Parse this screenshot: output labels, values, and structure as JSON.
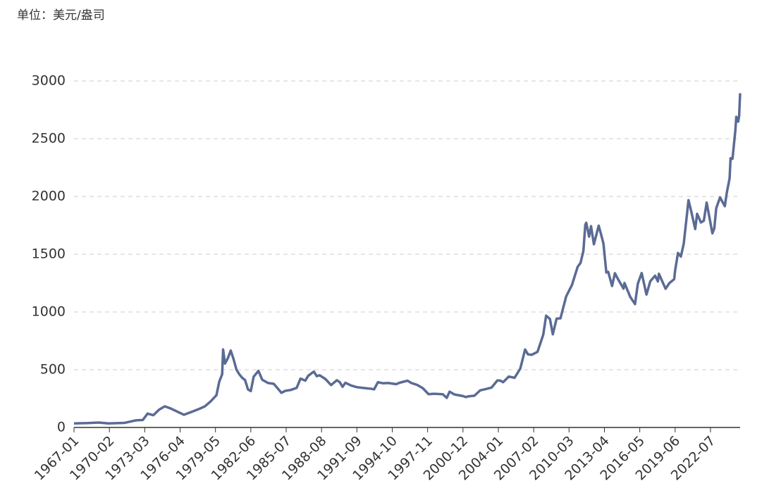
{
  "chart_data": {
    "type": "line",
    "unit_label": "单位：美元/盎司",
    "color": "#5a6b94",
    "grid": true,
    "xlim": [
      "1967-01",
      "2025-02"
    ],
    "ylim": [
      0,
      3000
    ],
    "yticks": [
      0,
      500,
      1000,
      1500,
      2000,
      2500,
      3000
    ],
    "xticks": [
      "1967-01",
      "1970-02",
      "1973-03",
      "1976-04",
      "1979-05",
      "1982-06",
      "1985-07",
      "1988-08",
      "1991-09",
      "1994-10",
      "1997-11",
      "2000-12",
      "2004-01",
      "2007-02",
      "2010-03",
      "2013-04",
      "2016-05",
      "2019-06",
      "2022-07"
    ],
    "x": [
      "1967-01",
      "1968-03",
      "1969-03",
      "1970-01",
      "1971-06",
      "1972-06",
      "1973-01",
      "1973-06",
      "1973-12",
      "1974-06",
      "1974-12",
      "1975-06",
      "1976-08",
      "1977-06",
      "1977-12",
      "1978-06",
      "1978-12",
      "1979-06",
      "1979-09",
      "1979-12",
      "1980-01",
      "1980-03",
      "1980-06",
      "1980-09",
      "1980-12",
      "1981-03",
      "1981-06",
      "1981-09",
      "1981-12",
      "1982-03",
      "1982-06",
      "1982-09",
      "1983-02",
      "1983-06",
      "1983-12",
      "1984-06",
      "1984-12",
      "1985-02",
      "1985-06",
      "1985-12",
      "1986-06",
      "1986-10",
      "1987-03",
      "1987-06",
      "1987-12",
      "1988-03",
      "1988-06",
      "1988-12",
      "1989-06",
      "1989-12",
      "1990-03",
      "1990-06",
      "1990-09",
      "1991-03",
      "1991-09",
      "1992-06",
      "1992-12",
      "1993-03",
      "1993-07",
      "1993-12",
      "1994-06",
      "1995-02",
      "1995-06",
      "1996-02",
      "1996-06",
      "1996-12",
      "1997-06",
      "1997-12",
      "1998-06",
      "1999-03",
      "1999-07",
      "1999-10",
      "2000-03",
      "2000-12",
      "2001-03",
      "2001-06",
      "2001-12",
      "2002-06",
      "2002-12",
      "2003-06",
      "2003-12",
      "2004-03",
      "2004-06",
      "2004-12",
      "2005-06",
      "2005-12",
      "2006-05",
      "2006-08",
      "2006-12",
      "2007-06",
      "2007-12",
      "2008-03",
      "2008-07",
      "2008-10",
      "2009-02",
      "2009-06",
      "2009-12",
      "2010-06",
      "2010-12",
      "2011-03",
      "2011-06",
      "2011-08",
      "2011-09",
      "2011-12",
      "2012-02",
      "2012-05",
      "2012-10",
      "2012-12",
      "2013-03",
      "2013-06",
      "2013-08",
      "2013-12",
      "2014-03",
      "2014-06",
      "2014-12",
      "2015-01",
      "2015-07",
      "2015-12",
      "2016-03",
      "2016-07",
      "2016-12",
      "2017-04",
      "2017-09",
      "2017-12",
      "2018-01",
      "2018-08",
      "2018-12",
      "2019-05",
      "2019-06",
      "2019-09",
      "2019-12",
      "2020-03",
      "2020-08",
      "2020-11",
      "2021-03",
      "2021-05",
      "2021-09",
      "2021-12",
      "2022-03",
      "2022-09",
      "2022-11",
      "2023-01",
      "2023-05",
      "2023-10",
      "2023-12",
      "2024-03",
      "2024-04",
      "2024-06",
      "2024-09",
      "2024-10",
      "2024-11",
      "2024-12",
      "2025-01",
      "2025-02"
    ],
    "values": [
      35,
      38,
      43,
      35,
      40,
      62,
      65,
      120,
      106,
      154,
      183,
      165,
      110,
      141,
      161,
      183,
      226,
      279,
      397,
      460,
      675,
      553,
      600,
      666,
      590,
      500,
      460,
      430,
      410,
      330,
      315,
      440,
      490,
      413,
      385,
      378,
      320,
      300,
      317,
      325,
      343,
      423,
      405,
      447,
      484,
      444,
      452,
      420,
      367,
      409,
      393,
      352,
      387,
      363,
      349,
      340,
      335,
      330,
      392,
      383,
      385,
      375,
      388,
      405,
      385,
      369,
      340,
      288,
      292,
      287,
      256,
      310,
      286,
      272,
      263,
      270,
      275,
      321,
      333,
      346,
      407,
      406,
      392,
      441,
      430,
      510,
      675,
      633,
      629,
      655,
      803,
      968,
      939,
      807,
      943,
      945,
      1135,
      1233,
      1391,
      1424,
      1528,
      1756,
      1772,
      1652,
      1743,
      1586,
      1747,
      1688,
      1592,
      1342,
      1347,
      1225,
      1336,
      1288,
      1202,
      1251,
      1131,
      1068,
      1246,
      1337,
      1151,
      1266,
      1314,
      1264,
      1331,
      1201,
      1250,
      1284,
      1359,
      1511,
      1480,
      1591,
      1968,
      1866,
      1718,
      1850,
      1775,
      1790,
      1947,
      1681,
      1725,
      1898,
      1992,
      1916,
      2030,
      2158,
      2331,
      2326,
      2570,
      2690,
      2650,
      2648,
      2700,
      2894
    ]
  }
}
